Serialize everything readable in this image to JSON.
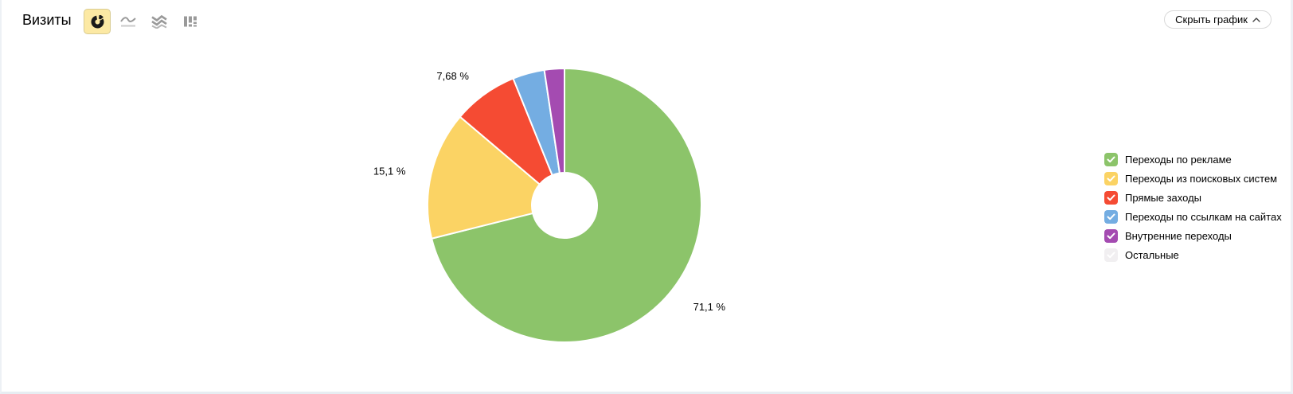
{
  "header": {
    "title": "Визиты",
    "hide_chart_label": "Скрыть график",
    "chart_type_buttons": [
      {
        "name": "donut",
        "icon": "donut-chart-icon",
        "selected": true
      },
      {
        "name": "line",
        "icon": "line-chart-icon",
        "selected": false
      },
      {
        "name": "stacked-area",
        "icon": "stacked-area-icon",
        "selected": false
      },
      {
        "name": "columns",
        "icon": "column-chart-icon",
        "selected": false
      }
    ]
  },
  "colors": {
    "selected_button_bg": "#fce9a4",
    "selected_button_border": "#d8cb92",
    "icon_gray": "#9a9a9a",
    "slice_separator": "#ffffff"
  },
  "chart_data": {
    "type": "pie",
    "donut": true,
    "title": "Визиты",
    "legend_position": "right",
    "start_angle_deg": 0,
    "direction": "clockwise",
    "series": [
      {
        "name": "Переходы по рекламе",
        "value": 71.1,
        "label": "71,1 %",
        "color": "#8cc46a",
        "checked": true
      },
      {
        "name": "Переходы из поисковых систем",
        "value": 15.1,
        "label": "15,1 %",
        "color": "#fbd364",
        "checked": true
      },
      {
        "name": "Прямые заходы",
        "value": 7.68,
        "label": "7,68 %",
        "color": "#f54b33",
        "checked": true
      },
      {
        "name": "Переходы по ссылкам на сайтах",
        "value": 3.76,
        "label": null,
        "color": "#74ade2",
        "checked": true
      },
      {
        "name": "Внутренние переходы",
        "value": 2.36,
        "label": null,
        "color": "#a44bb1",
        "checked": true
      },
      {
        "name": "Остальные",
        "value": 0,
        "label": null,
        "color": "#f1eff1",
        "checked": true
      }
    ]
  }
}
